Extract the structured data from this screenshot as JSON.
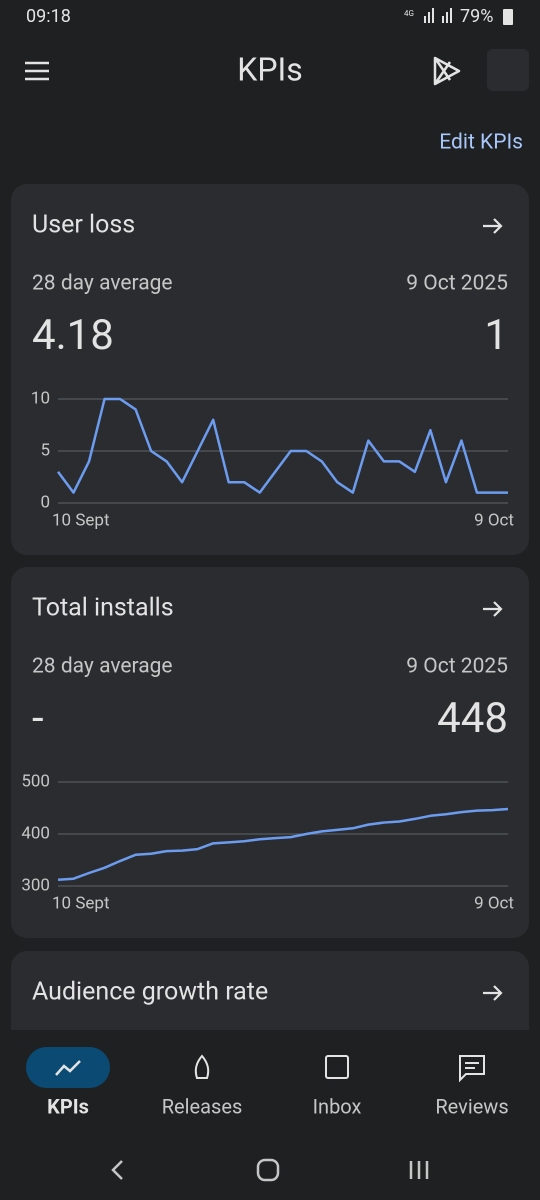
{
  "status": {
    "time": "09:18",
    "network": "4G",
    "battery": "79%"
  },
  "header": {
    "title": "KPIs",
    "action": "Edit KPIs"
  },
  "cards": [
    {
      "title": "User loss",
      "left_label": "28 day average",
      "right_label": "9 Oct 2025",
      "left_value": "4.18",
      "right_value": "1",
      "chart": {
        "type": "line",
        "color": "#6c9cf0",
        "ylim": [
          0,
          10
        ],
        "yticks": [
          0,
          5,
          10
        ],
        "categories": [
          "10 Sept",
          null,
          null,
          null,
          null,
          null,
          null,
          null,
          null,
          null,
          null,
          null,
          null,
          null,
          null,
          null,
          null,
          null,
          null,
          null,
          null,
          null,
          null,
          null,
          null,
          null,
          null,
          null,
          null,
          "9 Oct"
        ],
        "values": [
          3,
          1,
          4,
          10,
          10,
          9,
          5,
          4,
          2,
          5,
          8,
          2,
          2,
          1,
          3,
          5,
          5,
          4,
          2,
          1,
          6,
          4,
          4,
          3,
          7,
          2,
          6,
          1,
          1,
          1
        ]
      }
    },
    {
      "title": "Total installs",
      "left_label": "28 day average",
      "right_label": "9 Oct 2025",
      "left_value": "-",
      "right_value": "448",
      "chart": {
        "type": "line",
        "color": "#6c9cf0",
        "ylim": [
          300,
          500
        ],
        "yticks": [
          300,
          400,
          500
        ],
        "categories": [
          "10 Sept",
          null,
          null,
          null,
          null,
          null,
          null,
          null,
          null,
          null,
          null,
          null,
          null,
          null,
          null,
          null,
          null,
          null,
          null,
          null,
          null,
          null,
          null,
          null,
          null,
          null,
          null,
          null,
          null,
          "9 Oct"
        ],
        "values": [
          312,
          314,
          325,
          335,
          348,
          360,
          362,
          367,
          368,
          371,
          382,
          384,
          386,
          390,
          392,
          394,
          400,
          405,
          408,
          411,
          418,
          422,
          424,
          429,
          435,
          438,
          442,
          445,
          446,
          448
        ]
      }
    },
    {
      "title": "Audience growth rate"
    }
  ],
  "nav": [
    "KPIs",
    "Releases",
    "Inbox",
    "Reviews"
  ]
}
